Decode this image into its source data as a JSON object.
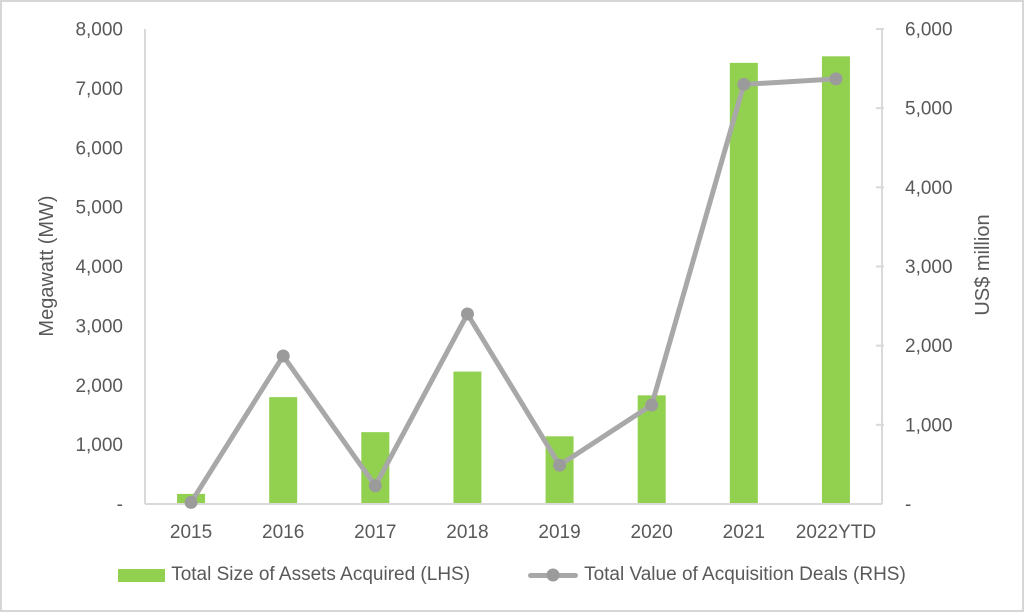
{
  "page": {
    "background": "#ffffff",
    "border_color": "#d6d6d6",
    "text_color": "#595959"
  },
  "chart_data": {
    "type": "bar",
    "subtype": "combo-bar-line-dual-axis",
    "title": "",
    "grid": false,
    "categories": [
      "2015",
      "2016",
      "2017",
      "2018",
      "2019",
      "2020",
      "2021",
      "2022YTD"
    ],
    "series": [
      {
        "name": "Total Size of Assets Acquired (LHS)",
        "type": "bar",
        "axis": "left",
        "color": "#92D050",
        "values": [
          170,
          1800,
          1210,
          2230,
          1140,
          1830,
          7430,
          7540
        ]
      },
      {
        "name": "Total Value of Acquisition Deals (RHS)",
        "type": "line",
        "axis": "right",
        "color": "#A8A8A8",
        "marker_color": "#9B9B9B",
        "values": [
          20,
          1870,
          230,
          2400,
          490,
          1250,
          5300,
          5370
        ]
      }
    ],
    "left_axis": {
      "title": "Megawatt (MW)",
      "min": 0,
      "max": 8000,
      "step": 1000,
      "tick_labels": [
        "-",
        "1,000",
        "2,000",
        "3,000",
        "4,000",
        "5,000",
        "6,000",
        "7,000",
        "8,000"
      ]
    },
    "right_axis": {
      "title": "US$ million",
      "min": 0,
      "max": 6000,
      "step": 1000,
      "tick_labels": [
        "-",
        "1,000",
        "2,000",
        "3,000",
        "4,000",
        "5,000",
        "6,000"
      ]
    },
    "legend_position": "bottom",
    "axis_line_color": "#D9D9D9"
  }
}
